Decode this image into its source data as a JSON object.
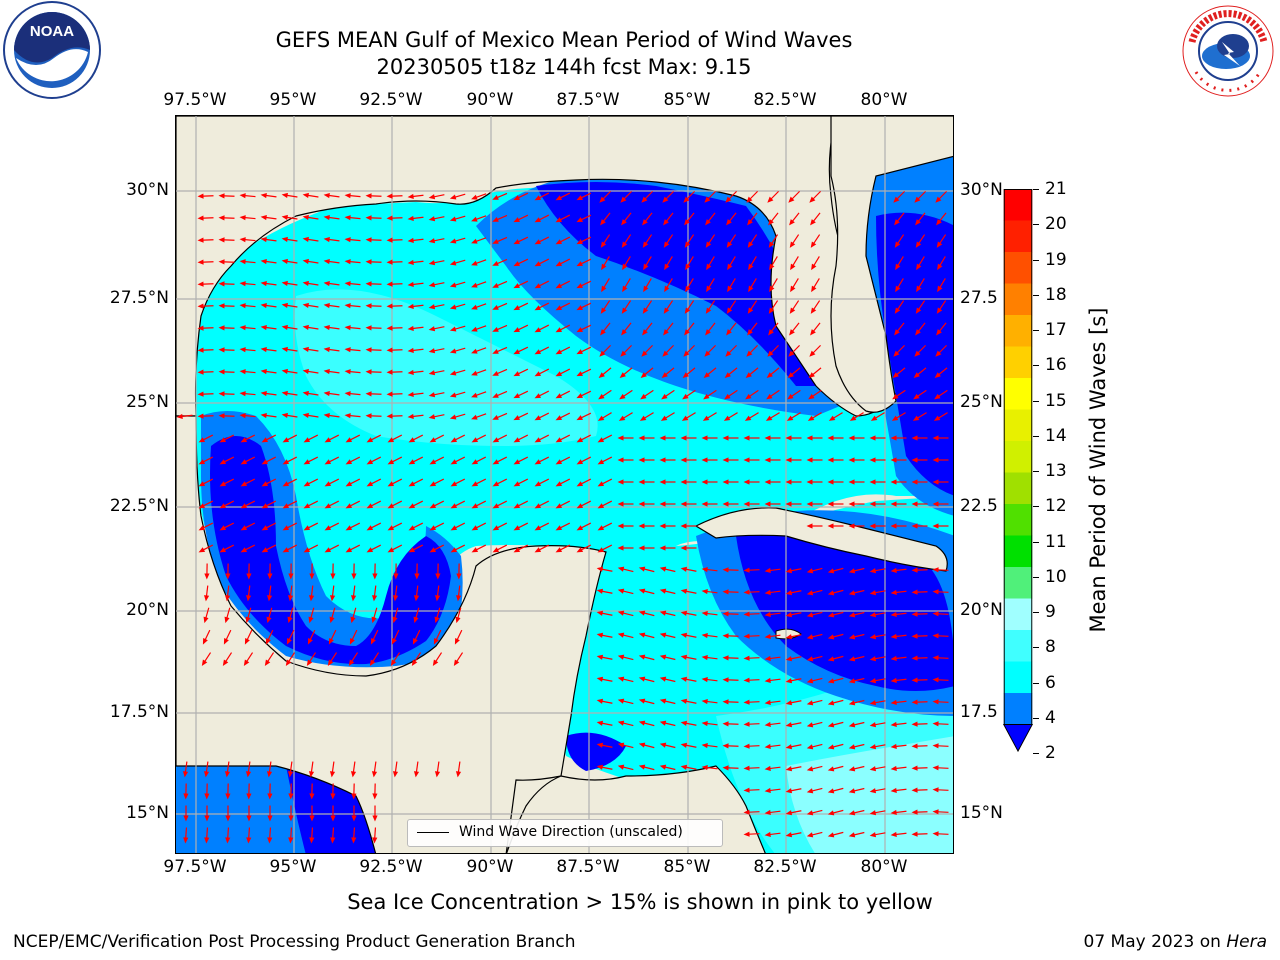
{
  "header": {
    "title_line1": "GEFS MEAN Gulf of Mexico Mean Period of Wind Waves",
    "title_line2": "20230505 t18z 144h fcst   Max: 9.15"
  },
  "map": {
    "lon_ticks": [
      "97.5°W",
      "95°W",
      "92.5°W",
      "90°W",
      "87.5°W",
      "85°W",
      "82.5°W",
      "80°W"
    ],
    "lat_ticks": [
      "30°N",
      "27.5°N",
      "25°N",
      "22.5°N",
      "20°N",
      "17.5°N",
      "15°N"
    ],
    "lat_ticks_right": [
      "30°N",
      "27.5",
      "25°N",
      "22.5",
      "20°N",
      "17.5",
      "15°N"
    ],
    "legend_label": "Wind Wave Direction (unscaled)",
    "arrow_color": "#ff0000",
    "land_color": "#efecdc"
  },
  "colorbar": {
    "label": "Mean Period of Wind Waves [s]",
    "ticks": [
      "2",
      "4",
      "6",
      "8",
      "9",
      "10",
      "11",
      "12",
      "13",
      "14",
      "15",
      "16",
      "17",
      "18",
      "19",
      "20",
      "21"
    ],
    "colors": [
      "#0000ff",
      "#0080ff",
      "#00ffff",
      "#40ffff",
      "#a0ffff",
      "#50f07a",
      "#00e000",
      "#50e000",
      "#a0e000",
      "#d0f000",
      "#e8f000",
      "#ffff00",
      "#ffd000",
      "#ffb000",
      "#ff8000",
      "#ff5000",
      "#ff2000",
      "#ff0000"
    ]
  },
  "subtitle": "Sea Ice Concentration > 15% is shown in pink to yellow",
  "footer": {
    "left": "NCEP/EMC/Verification Post Processing Product Generation Branch",
    "right_date": "07 May 2023 on ",
    "right_host": "Hera"
  },
  "logos": {
    "noaa_text": "NOAA",
    "noaa_ring": "NATIONAL OCEANIC AND ATMOSPHERIC ADMINISTRATION · U.S. DEPARTMENT OF COMMERCE",
    "nws_ring": "NATIONAL WEATHER SERVICE"
  }
}
